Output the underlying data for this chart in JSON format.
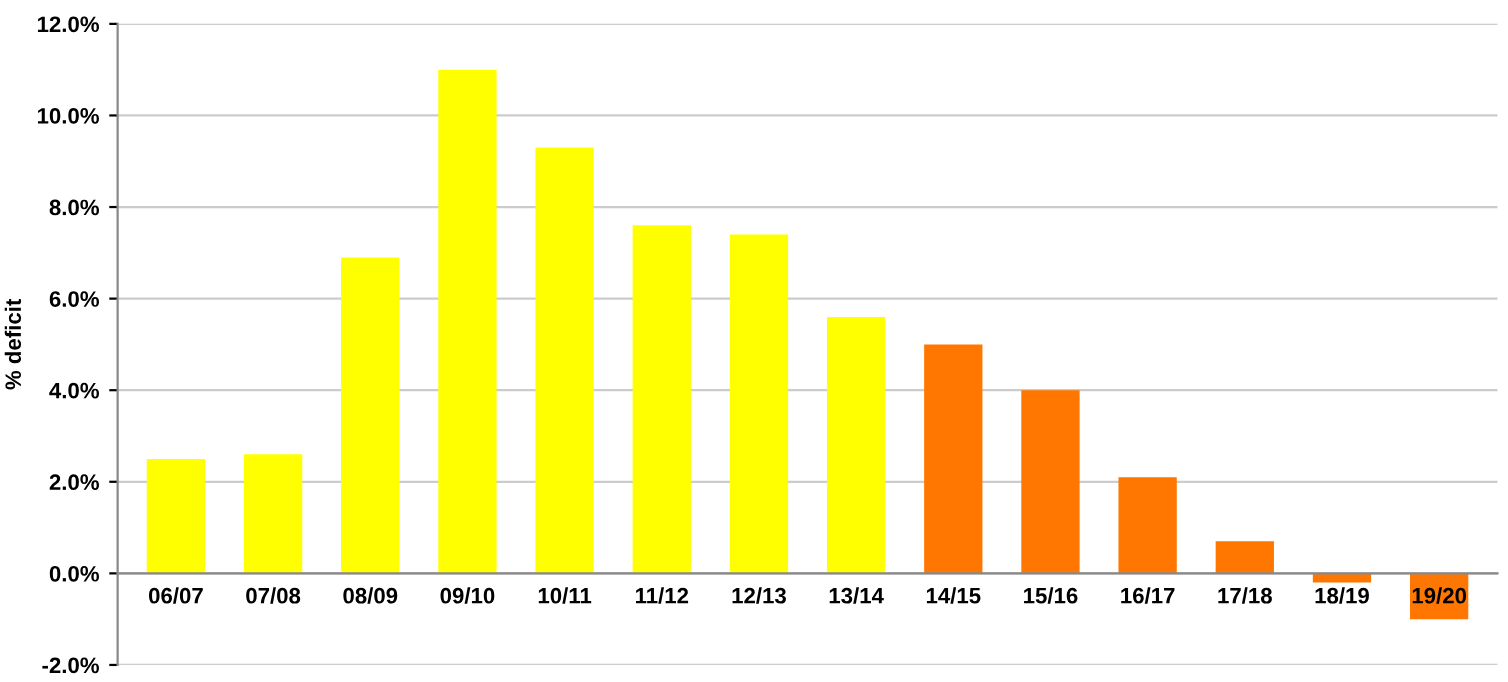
{
  "chart_data": {
    "type": "bar",
    "ylabel": "% deficit",
    "categories": [
      "06/07",
      "07/08",
      "08/09",
      "09/10",
      "10/11",
      "11/12",
      "12/13",
      "13/14",
      "14/15",
      "15/16",
      "16/17",
      "17/18",
      "18/19",
      "19/20"
    ],
    "values": [
      2.5,
      2.6,
      6.9,
      11.0,
      9.3,
      7.6,
      7.4,
      5.6,
      5.0,
      4.0,
      2.1,
      0.7,
      -0.2,
      -1.0
    ],
    "colors": [
      "#ffff00",
      "#ffff00",
      "#ffff00",
      "#ffff00",
      "#ffff00",
      "#ffff00",
      "#ffff00",
      "#ffff00",
      "#ff7700",
      "#ff7700",
      "#ff7700",
      "#ff7700",
      "#ff7700",
      "#ff7700"
    ],
    "ylim": [
      -2,
      12
    ],
    "yticks": [
      {
        "value": -2,
        "label": "-2.0%"
      },
      {
        "value": 0,
        "label": "0.0%"
      },
      {
        "value": 2,
        "label": "2.0%"
      },
      {
        "value": 4,
        "label": "4.0%"
      },
      {
        "value": 6,
        "label": "6.0%"
      },
      {
        "value": 8,
        "label": "8.0%"
      },
      {
        "value": 10,
        "label": "10.0%"
      },
      {
        "value": 12,
        "label": "12.0%"
      }
    ],
    "grid": "y",
    "legend": false
  }
}
